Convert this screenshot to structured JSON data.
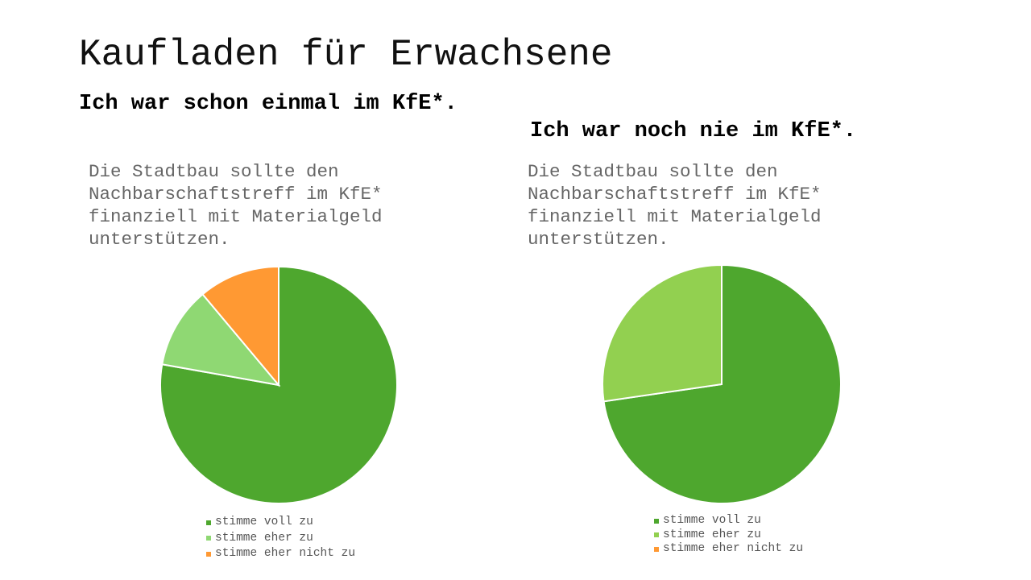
{
  "title": "Kaufladen für Erwachsene",
  "chart_data": [
    {
      "type": "pie",
      "title": "Ich war schon einmal im KfE*.",
      "subtitle": "Die Stadtbau sollte den Nachbarschaftstreff im KfE* finanziell mit Materialgeld unterstützen.",
      "categories": [
        "stimme voll zu",
        "stimme eher zu",
        "stimme eher nicht zu"
      ],
      "values": [
        77.8,
        11.1,
        11.1
      ],
      "colors": [
        "#4EA72E",
        "#8FD873",
        "#FF9933"
      ],
      "legend": "bottom"
    },
    {
      "type": "pie",
      "title": "Ich war noch nie im KfE*.",
      "subtitle": "Die Stadtbau sollte den Nachbarschaftstreff im KfE* finanziell mit Materialgeld unterstützen.",
      "categories": [
        "stimme voll zu",
        "stimme eher zu",
        "stimme eher nicht zu"
      ],
      "values": [
        72.7,
        27.3,
        0
      ],
      "colors": [
        "#4EA72E",
        "#92D050",
        "#FF9933"
      ],
      "legend": "bottom"
    }
  ]
}
